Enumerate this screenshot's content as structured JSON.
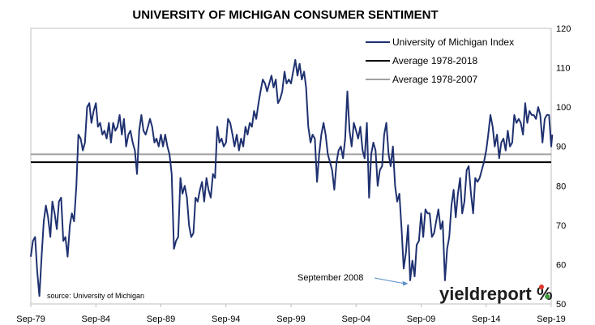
{
  "chart_data": {
    "type": "line",
    "title": "UNIVERSITY OF MICHIGAN CONSUMER SENTIMENT",
    "x_tick_labels": [
      "Sep-79",
      "Sep-84",
      "Sep-89",
      "Sep-94",
      "Sep-99",
      "Sep-04",
      "Sep-09",
      "Sep-14",
      "Sep-19"
    ],
    "ylim": [
      50,
      120
    ],
    "y_ticks": [
      50,
      60,
      70,
      80,
      90,
      100,
      110,
      120
    ],
    "y_axis_side": "right",
    "grid": false,
    "legend_placement": "top-right",
    "series": [
      {
        "name": "University of Michigan Index",
        "color": "#1F3170",
        "points": [
          [
            1979.67,
            62
          ],
          [
            1979.83,
            66
          ],
          [
            1980.0,
            67
          ],
          [
            1980.17,
            58
          ],
          [
            1980.33,
            52
          ],
          [
            1980.5,
            62
          ],
          [
            1980.67,
            71
          ],
          [
            1980.83,
            75
          ],
          [
            1981.0,
            72
          ],
          [
            1981.17,
            67
          ],
          [
            1981.33,
            76
          ],
          [
            1981.5,
            73
          ],
          [
            1981.67,
            69
          ],
          [
            1981.83,
            76
          ],
          [
            1982.0,
            77
          ],
          [
            1982.17,
            66
          ],
          [
            1982.33,
            67
          ],
          [
            1982.5,
            62
          ],
          [
            1982.67,
            70
          ],
          [
            1982.83,
            73
          ],
          [
            1983.0,
            71
          ],
          [
            1983.17,
            80
          ],
          [
            1983.33,
            93
          ],
          [
            1983.5,
            92
          ],
          [
            1983.67,
            89
          ],
          [
            1983.83,
            91
          ],
          [
            1984.0,
            100
          ],
          [
            1984.17,
            101
          ],
          [
            1984.33,
            96
          ],
          [
            1984.5,
            99
          ],
          [
            1984.67,
            101
          ],
          [
            1984.83,
            95
          ],
          [
            1985.0,
            96
          ],
          [
            1985.17,
            93
          ],
          [
            1985.33,
            94
          ],
          [
            1985.5,
            92
          ],
          [
            1985.67,
            96
          ],
          [
            1985.83,
            91
          ],
          [
            1986.0,
            96
          ],
          [
            1986.17,
            94
          ],
          [
            1986.33,
            95
          ],
          [
            1986.5,
            98
          ],
          [
            1986.67,
            93
          ],
          [
            1986.83,
            97
          ],
          [
            1987.0,
            90
          ],
          [
            1987.17,
            93
          ],
          [
            1987.33,
            94
          ],
          [
            1987.5,
            91
          ],
          [
            1987.67,
            89
          ],
          [
            1987.83,
            83
          ],
          [
            1988.0,
            94
          ],
          [
            1988.17,
            98
          ],
          [
            1988.33,
            94
          ],
          [
            1988.5,
            93
          ],
          [
            1988.67,
            95
          ],
          [
            1988.83,
            97
          ],
          [
            1989.0,
            95
          ],
          [
            1989.17,
            91
          ],
          [
            1989.33,
            92
          ],
          [
            1989.5,
            90
          ],
          [
            1989.67,
            93
          ],
          [
            1989.83,
            90
          ],
          [
            1990.0,
            93
          ],
          [
            1990.17,
            90
          ],
          [
            1990.33,
            88
          ],
          [
            1990.5,
            83
          ],
          [
            1990.67,
            64
          ],
          [
            1990.83,
            66
          ],
          [
            1991.0,
            67
          ],
          [
            1991.17,
            82
          ],
          [
            1991.33,
            78
          ],
          [
            1991.5,
            80
          ],
          [
            1991.67,
            77
          ],
          [
            1991.83,
            70
          ],
          [
            1992.0,
            67
          ],
          [
            1992.17,
            68
          ],
          [
            1992.33,
            77
          ],
          [
            1992.5,
            76
          ],
          [
            1992.67,
            79
          ],
          [
            1992.83,
            81
          ],
          [
            1993.0,
            76
          ],
          [
            1993.17,
            82
          ],
          [
            1993.33,
            79
          ],
          [
            1993.5,
            77
          ],
          [
            1993.67,
            83
          ],
          [
            1993.83,
            82
          ],
          [
            1994.0,
            95
          ],
          [
            1994.17,
            91
          ],
          [
            1994.33,
            92
          ],
          [
            1994.5,
            90
          ],
          [
            1994.67,
            91
          ],
          [
            1994.83,
            97
          ],
          [
            1995.0,
            96
          ],
          [
            1995.17,
            93
          ],
          [
            1995.33,
            90
          ],
          [
            1995.5,
            93
          ],
          [
            1995.67,
            89
          ],
          [
            1995.83,
            92
          ],
          [
            1996.0,
            90
          ],
          [
            1996.17,
            95
          ],
          [
            1996.33,
            93
          ],
          [
            1996.5,
            96
          ],
          [
            1996.67,
            95
          ],
          [
            1996.83,
            99
          ],
          [
            1997.0,
            97
          ],
          [
            1997.17,
            101
          ],
          [
            1997.33,
            104
          ],
          [
            1997.5,
            107
          ],
          [
            1997.67,
            106
          ],
          [
            1997.83,
            104
          ],
          [
            1998.0,
            106
          ],
          [
            1998.17,
            108
          ],
          [
            1998.33,
            105
          ],
          [
            1998.5,
            107
          ],
          [
            1998.67,
            101
          ],
          [
            1998.83,
            102
          ],
          [
            1999.0,
            104
          ],
          [
            1999.17,
            109
          ],
          [
            1999.33,
            106
          ],
          [
            1999.5,
            107
          ],
          [
            1999.67,
            106
          ],
          [
            1999.83,
            109
          ],
          [
            2000.0,
            112
          ],
          [
            2000.17,
            108
          ],
          [
            2000.33,
            111
          ],
          [
            2000.5,
            107
          ],
          [
            2000.67,
            109
          ],
          [
            2000.83,
            105
          ],
          [
            2001.0,
            95
          ],
          [
            2001.17,
            91
          ],
          [
            2001.33,
            93
          ],
          [
            2001.5,
            92
          ],
          [
            2001.67,
            81
          ],
          [
            2001.83,
            88
          ],
          [
            2002.0,
            93
          ],
          [
            2002.17,
            96
          ],
          [
            2002.33,
            93
          ],
          [
            2002.5,
            88
          ],
          [
            2002.67,
            86
          ],
          [
            2002.83,
            84
          ],
          [
            2003.0,
            79
          ],
          [
            2003.17,
            86
          ],
          [
            2003.33,
            89
          ],
          [
            2003.5,
            90
          ],
          [
            2003.67,
            87
          ],
          [
            2003.83,
            92
          ],
          [
            2004.0,
            104
          ],
          [
            2004.17,
            94
          ],
          [
            2004.33,
            90
          ],
          [
            2004.5,
            96
          ],
          [
            2004.67,
            94
          ],
          [
            2004.83,
            92
          ],
          [
            2005.0,
            95
          ],
          [
            2005.17,
            89
          ],
          [
            2005.33,
            87
          ],
          [
            2005.5,
            96
          ],
          [
            2005.67,
            77
          ],
          [
            2005.83,
            88
          ],
          [
            2006.0,
            91
          ],
          [
            2006.17,
            89
          ],
          [
            2006.33,
            80
          ],
          [
            2006.5,
            84
          ],
          [
            2006.67,
            85
          ],
          [
            2006.83,
            93
          ],
          [
            2007.0,
            96
          ],
          [
            2007.17,
            88
          ],
          [
            2007.33,
            85
          ],
          [
            2007.5,
            90
          ],
          [
            2007.67,
            80
          ],
          [
            2007.83,
            76
          ],
          [
            2008.0,
            78
          ],
          [
            2008.17,
            69
          ],
          [
            2008.33,
            59
          ],
          [
            2008.5,
            63
          ],
          [
            2008.67,
            70
          ],
          [
            2008.83,
            56
          ],
          [
            2009.0,
            61
          ],
          [
            2009.17,
            57
          ],
          [
            2009.33,
            65
          ],
          [
            2009.5,
            66
          ],
          [
            2009.67,
            73
          ],
          [
            2009.83,
            67
          ],
          [
            2010.0,
            74
          ],
          [
            2010.17,
            73
          ],
          [
            2010.33,
            73
          ],
          [
            2010.5,
            67
          ],
          [
            2010.67,
            68
          ],
          [
            2010.83,
            71
          ],
          [
            2011.0,
            74
          ],
          [
            2011.17,
            69
          ],
          [
            2011.33,
            71
          ],
          [
            2011.5,
            56
          ],
          [
            2011.67,
            64
          ],
          [
            2011.83,
            67
          ],
          [
            2012.0,
            75
          ],
          [
            2012.17,
            79
          ],
          [
            2012.33,
            72
          ],
          [
            2012.5,
            78
          ],
          [
            2012.67,
            82
          ],
          [
            2012.83,
            73
          ],
          [
            2013.0,
            76
          ],
          [
            2013.17,
            84
          ],
          [
            2013.33,
            85
          ],
          [
            2013.5,
            78
          ],
          [
            2013.67,
            73
          ],
          [
            2013.83,
            82
          ],
          [
            2014.0,
            81
          ],
          [
            2014.17,
            82
          ],
          [
            2014.33,
            84
          ],
          [
            2014.5,
            86
          ],
          [
            2014.67,
            89
          ],
          [
            2014.83,
            93
          ],
          [
            2015.0,
            98
          ],
          [
            2015.17,
            95
          ],
          [
            2015.33,
            90
          ],
          [
            2015.5,
            93
          ],
          [
            2015.67,
            87
          ],
          [
            2015.83,
            91
          ],
          [
            2016.0,
            92
          ],
          [
            2016.17,
            89
          ],
          [
            2016.33,
            94
          ],
          [
            2016.5,
            90
          ],
          [
            2016.67,
            91
          ],
          [
            2016.83,
            98
          ],
          [
            2017.0,
            96
          ],
          [
            2017.17,
            97
          ],
          [
            2017.33,
            96
          ],
          [
            2017.5,
            93
          ],
          [
            2017.67,
            101
          ],
          [
            2017.83,
            96
          ],
          [
            2018.0,
            99
          ],
          [
            2018.17,
            98
          ],
          [
            2018.33,
            98
          ],
          [
            2018.5,
            97
          ],
          [
            2018.67,
            100
          ],
          [
            2018.83,
            98
          ],
          [
            2019.0,
            91
          ],
          [
            2019.17,
            97
          ],
          [
            2019.33,
            98
          ],
          [
            2019.5,
            98
          ],
          [
            2019.67,
            90
          ],
          [
            2019.75,
            93
          ]
        ]
      },
      {
        "name": "Average 1978-2018",
        "color": "#000000",
        "value": 86
      },
      {
        "name": "Average 1978-2007",
        "color": "#a0a0a0",
        "value": 88
      }
    ],
    "annotation": {
      "text": "September  2008",
      "x": 2008.67,
      "y": 55
    },
    "source_note": "source: University of Michigan"
  },
  "logo": {
    "main": "yieldreport",
    "accent_symbol": "%"
  }
}
